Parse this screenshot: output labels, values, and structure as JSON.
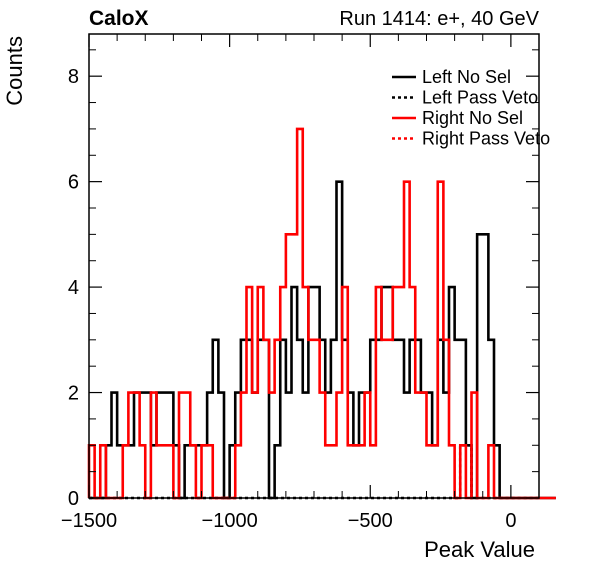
{
  "chart_data": {
    "type": "histogram-step",
    "title_left": "CaloX",
    "title_right": "Run 1414: e+, 40 GeV",
    "xlabel": "Peak Value",
    "ylabel": "Counts",
    "xlim": [
      -1500,
      100
    ],
    "ylim": [
      0,
      8.8
    ],
    "xticks": [
      {
        "value": -1500,
        "label": "−1500"
      },
      {
        "value": -1000,
        "label": "−1000"
      },
      {
        "value": -500,
        "label": "−500"
      },
      {
        "value": 0,
        "label": "0"
      }
    ],
    "yticks": [
      {
        "value": 0,
        "label": "0"
      },
      {
        "value": 2,
        "label": "2"
      },
      {
        "value": 4,
        "label": "4"
      },
      {
        "value": 6,
        "label": "6"
      },
      {
        "value": 8,
        "label": "8"
      }
    ],
    "bin_width": 20,
    "bin_start": -1500,
    "legend_position": "top-right",
    "series": [
      {
        "name": "Left No Sel",
        "color": "#000000",
        "dash": "solid",
        "values": [
          0,
          0,
          0,
          1,
          2,
          1,
          1,
          1,
          2,
          2,
          2,
          1,
          2,
          2,
          2,
          1,
          0,
          1,
          1,
          1,
          1,
          2,
          3,
          2,
          0,
          1,
          2,
          3,
          3,
          2,
          3,
          3,
          0,
          1,
          3,
          2,
          4,
          3,
          2,
          4,
          4,
          3,
          2,
          3,
          6,
          3,
          2,
          1,
          2,
          2,
          3,
          3,
          4,
          4,
          3,
          3,
          2,
          3,
          3,
          2,
          2,
          1,
          3,
          2,
          4,
          3,
          3,
          1,
          0,
          5,
          5,
          3,
          1,
          0,
          0,
          0,
          0,
          0,
          0,
          0,
          0,
          0,
          0
        ]
      },
      {
        "name": "Left Pass Veto",
        "color": "#000000",
        "dash": "dotted",
        "values": [
          0,
          0,
          0,
          0,
          0,
          0,
          0,
          0,
          0,
          0,
          0,
          0,
          0,
          0,
          0,
          0,
          0,
          0,
          0,
          0,
          0,
          0,
          0,
          0,
          0,
          0,
          0,
          0,
          0,
          0,
          0,
          0,
          0,
          0,
          0,
          0,
          0,
          0,
          0,
          0,
          0,
          0,
          0,
          0,
          0,
          0,
          0,
          0,
          0,
          0,
          0,
          0,
          0,
          0,
          0,
          0,
          0,
          0,
          0,
          0,
          0,
          0,
          0,
          0,
          0,
          0,
          1,
          1,
          0,
          0,
          0,
          0,
          0,
          0,
          0,
          0,
          0,
          0,
          0,
          0
        ]
      },
      {
        "name": "Right No Sel",
        "color": "#ff0000",
        "dash": "solid",
        "values": [
          1,
          0,
          1,
          0,
          0,
          0,
          1,
          2,
          2,
          1,
          0,
          2,
          1,
          1,
          1,
          0,
          2,
          2,
          1,
          0,
          1,
          1,
          0,
          0,
          0,
          0,
          1,
          2,
          4,
          2,
          4,
          3,
          2,
          3,
          4,
          5,
          5,
          7,
          4,
          3,
          3,
          2,
          1,
          1,
          2,
          4,
          1,
          1,
          1,
          2,
          1,
          4,
          3,
          3,
          4,
          4,
          6,
          4,
          2,
          2,
          1,
          1,
          6,
          3,
          1,
          0,
          1,
          0,
          2,
          0,
          0,
          1,
          0,
          0,
          0,
          0,
          0,
          0,
          0,
          0,
          0,
          0,
          0
        ]
      },
      {
        "name": "Right Pass Veto",
        "color": "#ff0000",
        "dash": "dotted",
        "values": []
      }
    ]
  }
}
